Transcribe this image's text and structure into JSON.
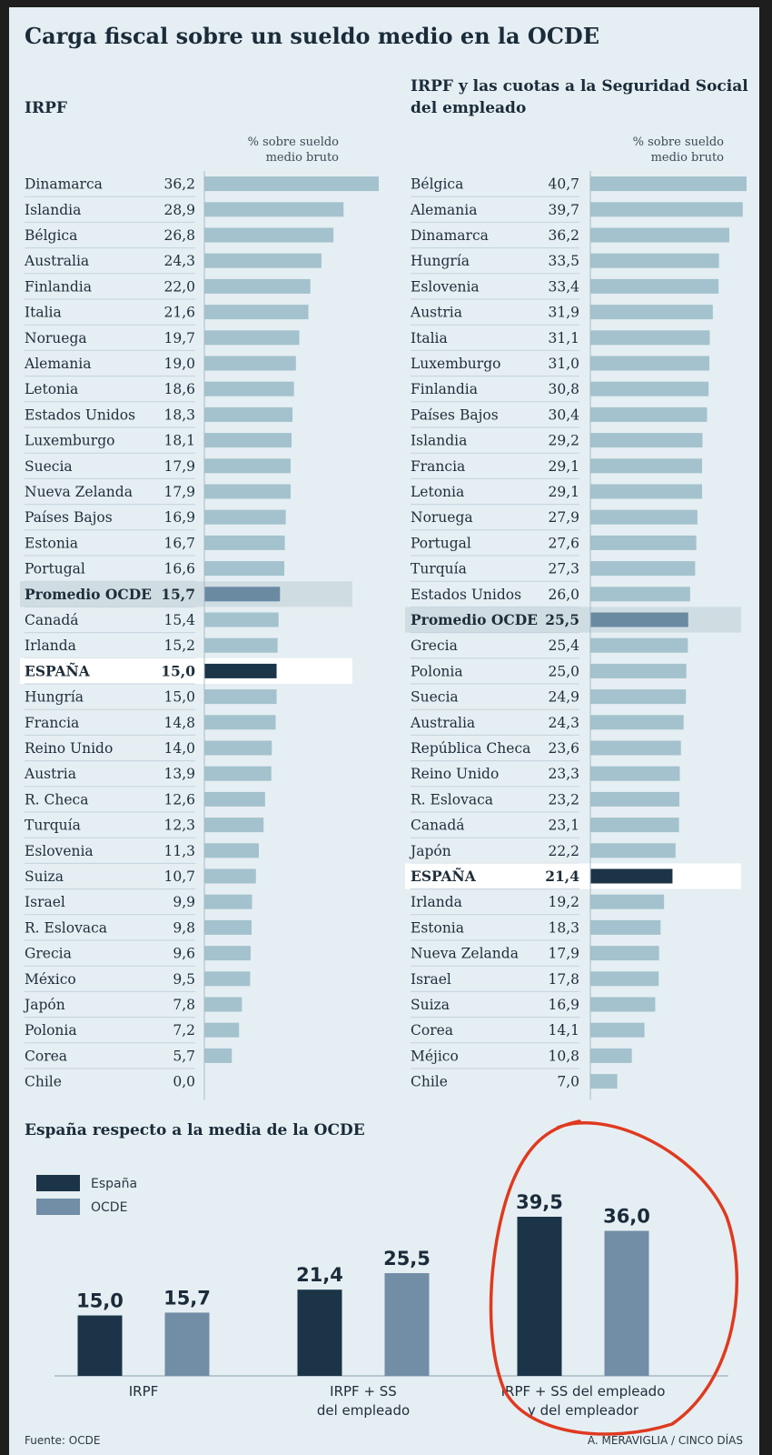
{
  "title": "Carga fiscal sobre un sueldo medio en la OCDE",
  "colors": {
    "background": "#e5eef2",
    "bar": "#a3c2cd",
    "average": "#6a8aa2",
    "spain": "#1b3448",
    "ocde": "#728da6",
    "highlight_white": "#ffffff",
    "highlight_avg": "#cfdde3",
    "annotation": "#e0391f"
  },
  "chart_data": [
    {
      "type": "bar",
      "orientation": "horizontal",
      "title_line1": "IRPF",
      "unit_line1": "% sobre sueldo",
      "unit_line2": "medio bruto",
      "xlim": [
        0,
        36.2
      ],
      "rows": [
        {
          "label": "Dinamarca",
          "value": 36.2,
          "display": "36,2"
        },
        {
          "label": "Islandia",
          "value": 28.9,
          "display": "28,9"
        },
        {
          "label": "Bélgica",
          "value": 26.8,
          "display": "26,8"
        },
        {
          "label": "Australia",
          "value": 24.3,
          "display": "24,3"
        },
        {
          "label": "Finlandia",
          "value": 22.0,
          "display": "22,0"
        },
        {
          "label": "Italia",
          "value": 21.6,
          "display": "21,6"
        },
        {
          "label": "Noruega",
          "value": 19.7,
          "display": "19,7"
        },
        {
          "label": "Alemania",
          "value": 19.0,
          "display": "19,0"
        },
        {
          "label": "Letonia",
          "value": 18.6,
          "display": "18,6"
        },
        {
          "label": "Estados Unidos",
          "value": 18.3,
          "display": "18,3"
        },
        {
          "label": "Luxemburgo",
          "value": 18.1,
          "display": "18,1"
        },
        {
          "label": "Suecia",
          "value": 17.9,
          "display": "17,9"
        },
        {
          "label": "Nueva Zelanda",
          "value": 17.9,
          "display": "17,9"
        },
        {
          "label": "Países Bajos",
          "value": 16.9,
          "display": "16,9"
        },
        {
          "label": "Estonia",
          "value": 16.7,
          "display": "16,7"
        },
        {
          "label": "Portugal",
          "value": 16.6,
          "display": "16,6"
        },
        {
          "label": "Promedio OCDE",
          "value": 15.7,
          "display": "15,7",
          "kind": "average"
        },
        {
          "label": "Canadá",
          "value": 15.4,
          "display": "15,4"
        },
        {
          "label": "Irlanda",
          "value": 15.2,
          "display": "15,2"
        },
        {
          "label": "ESPAÑA",
          "value": 15.0,
          "display": "15,0",
          "kind": "spain"
        },
        {
          "label": "Hungría",
          "value": 15.0,
          "display": "15,0"
        },
        {
          "label": "Francia",
          "value": 14.8,
          "display": "14,8"
        },
        {
          "label": "Reino Unido",
          "value": 14.0,
          "display": "14,0"
        },
        {
          "label": "Austria",
          "value": 13.9,
          "display": "13,9"
        },
        {
          "label": "R. Checa",
          "value": 12.6,
          "display": "12,6"
        },
        {
          "label": "Turquía",
          "value": 12.3,
          "display": "12,3"
        },
        {
          "label": "Eslovenia",
          "value": 11.3,
          "display": "11,3"
        },
        {
          "label": "Suiza",
          "value": 10.7,
          "display": "10,7"
        },
        {
          "label": "Israel",
          "value": 9.9,
          "display": "9,9"
        },
        {
          "label": "R. Eslovaca",
          "value": 9.8,
          "display": "9,8"
        },
        {
          "label": "Grecia",
          "value": 9.6,
          "display": "9,6"
        },
        {
          "label": "México",
          "value": 9.5,
          "display": "9,5"
        },
        {
          "label": "Japón",
          "value": 7.8,
          "display": "7,8"
        },
        {
          "label": "Polonia",
          "value": 7.2,
          "display": "7,2"
        },
        {
          "label": "Corea",
          "value": 5.7,
          "display": "5,7"
        },
        {
          "label": "Chile",
          "value": 0.0,
          "display": "0,0"
        }
      ]
    },
    {
      "type": "bar",
      "orientation": "horizontal",
      "title_line1": "IRPF y las cuotas a la Seguridad Social",
      "title_line2": "del empleado",
      "unit_line1": "% sobre sueldo",
      "unit_line2": "medio bruto",
      "xlim": [
        0,
        40.7
      ],
      "rows": [
        {
          "label": "Bélgica",
          "value": 40.7,
          "display": "40,7"
        },
        {
          "label": "Alemania",
          "value": 39.7,
          "display": "39,7"
        },
        {
          "label": "Dinamarca",
          "value": 36.2,
          "display": "36,2"
        },
        {
          "label": "Hungría",
          "value": 33.5,
          "display": "33,5"
        },
        {
          "label": "Eslovenia",
          "value": 33.4,
          "display": "33,4"
        },
        {
          "label": "Austria",
          "value": 31.9,
          "display": "31,9"
        },
        {
          "label": "Italia",
          "value": 31.1,
          "display": "31,1"
        },
        {
          "label": "Luxemburgo",
          "value": 31.0,
          "display": "31,0"
        },
        {
          "label": "Finlandia",
          "value": 30.8,
          "display": "30,8"
        },
        {
          "label": "Países Bajos",
          "value": 30.4,
          "display": "30,4"
        },
        {
          "label": "Islandia",
          "value": 29.2,
          "display": "29,2"
        },
        {
          "label": "Francia",
          "value": 29.1,
          "display": "29,1"
        },
        {
          "label": "Letonia",
          "value": 29.1,
          "display": "29,1"
        },
        {
          "label": "Noruega",
          "value": 27.9,
          "display": "27,9"
        },
        {
          "label": "Portugal",
          "value": 27.6,
          "display": "27,6"
        },
        {
          "label": "Turquía",
          "value": 27.3,
          "display": "27,3"
        },
        {
          "label": "Estados Unidos",
          "value": 26.0,
          "display": "26,0"
        },
        {
          "label": "Promedio OCDE",
          "value": 25.5,
          "display": "25,5",
          "kind": "average"
        },
        {
          "label": "Grecia",
          "value": 25.4,
          "display": "25,4"
        },
        {
          "label": "Polonia",
          "value": 25.0,
          "display": "25,0"
        },
        {
          "label": "Suecia",
          "value": 24.9,
          "display": "24,9"
        },
        {
          "label": "Australia",
          "value": 24.3,
          "display": "24,3"
        },
        {
          "label": "República Checa",
          "value": 23.6,
          "display": "23,6"
        },
        {
          "label": "Reino Unido",
          "value": 23.3,
          "display": "23,3"
        },
        {
          "label": "R. Eslovaca",
          "value": 23.2,
          "display": "23,2"
        },
        {
          "label": "Canadá",
          "value": 23.1,
          "display": "23,1"
        },
        {
          "label": "Japón",
          "value": 22.2,
          "display": "22,2"
        },
        {
          "label": "ESPAÑA",
          "value": 21.4,
          "display": "21,4",
          "kind": "spain"
        },
        {
          "label": "Irlanda",
          "value": 19.2,
          "display": "19,2"
        },
        {
          "label": "Estonia",
          "value": 18.3,
          "display": "18,3"
        },
        {
          "label": "Nueva Zelanda",
          "value": 17.9,
          "display": "17,9"
        },
        {
          "label": "Israel",
          "value": 17.8,
          "display": "17,8"
        },
        {
          "label": "Suiza",
          "value": 16.9,
          "display": "16,9"
        },
        {
          "label": "Corea",
          "value": 14.1,
          "display": "14,1"
        },
        {
          "label": "Méjico",
          "value": 10.8,
          "display": "10,8"
        },
        {
          "label": "Chile",
          "value": 7.0,
          "display": "7,0"
        }
      ]
    },
    {
      "type": "bar",
      "orientation": "vertical",
      "title": "España respecto a la media de la OCDE",
      "ylim": [
        0,
        39.5
      ],
      "legend": [
        {
          "name": "España",
          "color_key": "spain"
        },
        {
          "name": "OCDE",
          "color_key": "ocde"
        }
      ],
      "groups": [
        {
          "label_lines": [
            "IRPF"
          ],
          "values": [
            15.0,
            15.7
          ],
          "display": [
            "15,0",
            "15,7"
          ]
        },
        {
          "label_lines": [
            "IRPF + SS",
            "del empleado"
          ],
          "values": [
            21.4,
            25.5
          ],
          "display": [
            "21,4",
            "25,5"
          ]
        },
        {
          "label_lines": [
            "IRPF + SS del empleado",
            "y del empleador"
          ],
          "values": [
            39.5,
            36.0
          ],
          "display": [
            "39,5",
            "36,0"
          ],
          "circled": true
        }
      ]
    }
  ],
  "footer": {
    "source": "Fuente: OCDE",
    "credit": "A. MERAVIGLIA / CINCO DÍAS"
  }
}
